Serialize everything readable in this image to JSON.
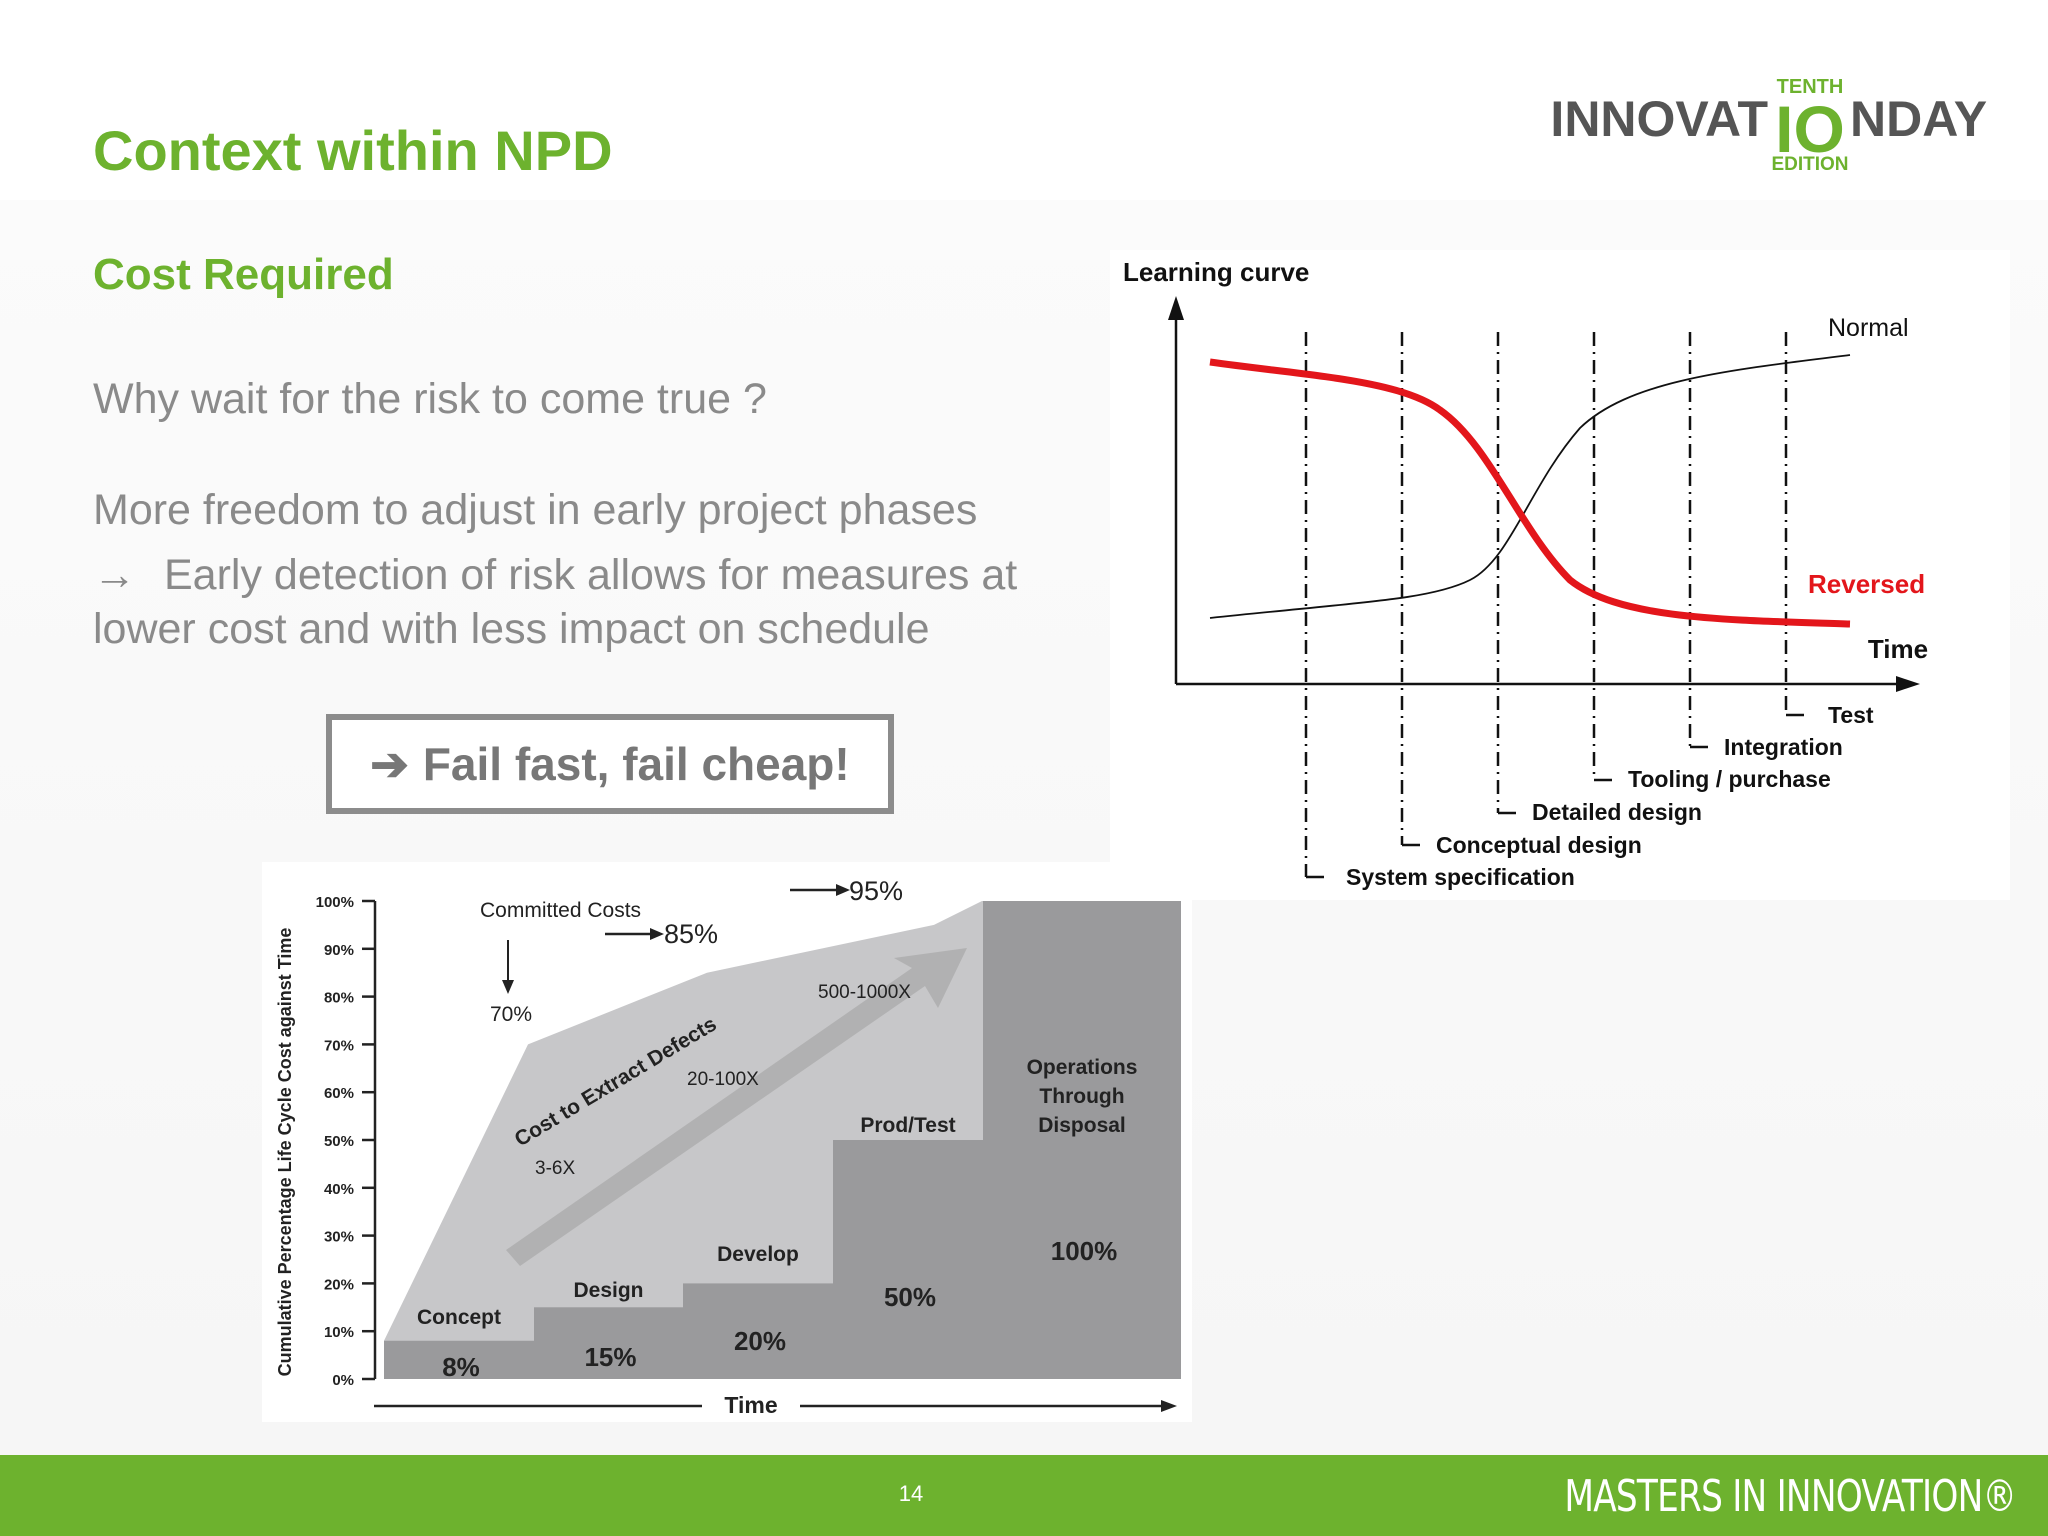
{
  "slide": {
    "title": "Context within NPD",
    "subtitle": "Cost Required",
    "paragraph_1": "Why wait for the risk to come true ?",
    "paragraph_2": "More freedom to adjust in early project phases",
    "paragraph_3_arrow": "→",
    "paragraph_3_line_1": "Early detection of risk allows for measures at",
    "paragraph_3_line_2": "lower cost and with less impact on schedule",
    "callout_arrow": "➔",
    "callout_text": "Fail fast, fail cheap!"
  },
  "logo": {
    "top_text": "TENTH",
    "left_text": "INNOVAT",
    "center_text": "IO",
    "right_text": "NDAY",
    "bottom_text": "EDITION",
    "color_green": "#6db22e",
    "color_grey": "#555555"
  },
  "learning_curve": {
    "title": "Learning curve",
    "x_label": "Time",
    "normal_label": "Normal",
    "reversed_label": "Reversed",
    "reversed_color": "#e3161b",
    "phases": [
      "System specification",
      "Conceptual design",
      "Detailed design",
      "Tooling / purchase",
      "Integration",
      "Test"
    ]
  },
  "chart_data": {
    "type": "area",
    "y_axis_label": "Cumulative Percentage Life Cycle Cost against Time",
    "x_axis_label": "Time",
    "y_ticks": [
      "0%",
      "10%",
      "20%",
      "30%",
      "40%",
      "50%",
      "60%",
      "70%",
      "80%",
      "90%",
      "100%"
    ],
    "ylim": [
      0,
      100
    ],
    "phases": [
      {
        "name": "Concept",
        "value_label": "8%",
        "value": 8
      },
      {
        "name": "Design",
        "value_label": "15%",
        "value": 15
      },
      {
        "name": "Develop",
        "value_label": "20%",
        "value": 20
      },
      {
        "name": "Prod/Test",
        "value_label": "50%",
        "value": 50
      },
      {
        "name": "Operations Through Disposal",
        "value_label": "100%",
        "value": 100
      }
    ],
    "operations_label_lines": [
      "Operations",
      "Through",
      "Disposal"
    ],
    "committed_costs": {
      "label": "Committed Costs",
      "points": [
        {
          "label": "70%",
          "value": 70
        },
        {
          "label": "85%",
          "value": 85
        },
        {
          "label": "95%",
          "value": 95
        }
      ]
    },
    "defect_cost": {
      "label": "Cost to Extract Defects",
      "multipliers": [
        "3-6X",
        "20-100X",
        "500-1000X"
      ]
    }
  },
  "footer": {
    "page_number": "14",
    "brand": "MASTERS IN INNOVATION®",
    "color": "#6db22e"
  }
}
